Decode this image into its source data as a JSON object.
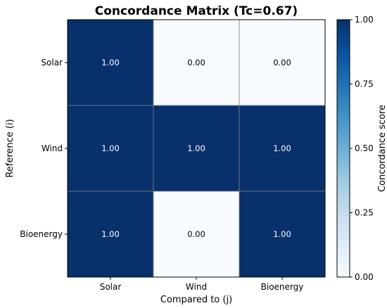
{
  "chart_data": {
    "type": "heatmap",
    "title": "Concordance Matrix (Tc=0.67)",
    "xlabel": "Compared to (j)",
    "ylabel": "Reference (i)",
    "x_categories": [
      "Solar",
      "Wind",
      "Bioenergy"
    ],
    "y_categories": [
      "Solar",
      "Wind",
      "Bioenergy"
    ],
    "values": [
      [
        1.0,
        0.0,
        0.0
      ],
      [
        1.0,
        1.0,
        1.0
      ],
      [
        1.0,
        0.0,
        1.0
      ]
    ],
    "value_labels": [
      [
        "1.00",
        "0.00",
        "0.00"
      ],
      [
        "1.00",
        "1.00",
        "1.00"
      ],
      [
        "1.00",
        "0.00",
        "1.00"
      ]
    ],
    "colorbar": {
      "label": "Concordance score",
      "range": [
        0,
        1
      ],
      "ticks": [
        "0.00",
        "0.25",
        "0.50",
        "0.75",
        "1.00"
      ],
      "colormap": "Blues"
    },
    "colors": {
      "high": "#08306b",
      "low": "#f7fbff",
      "grid": "#808080",
      "text_on_dark": "#ffffff",
      "text_on_light": "#000000"
    }
  }
}
